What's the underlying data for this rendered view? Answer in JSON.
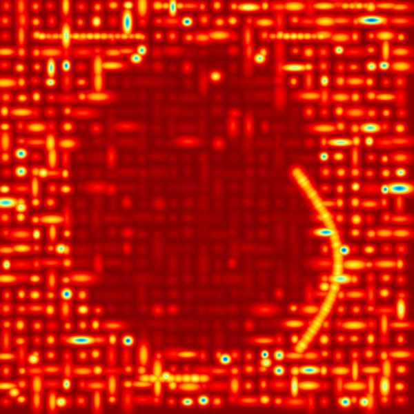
{
  "image": {
    "kind": "heatmap",
    "colormap": "jet",
    "background_color": "#800000",
    "palette": [
      "#800000",
      "#c00000",
      "#ff0000",
      "#ff8000",
      "#ffd000",
      "#ffff80",
      "#80ffc0",
      "#00c8ff",
      "#0040ff"
    ]
  }
}
